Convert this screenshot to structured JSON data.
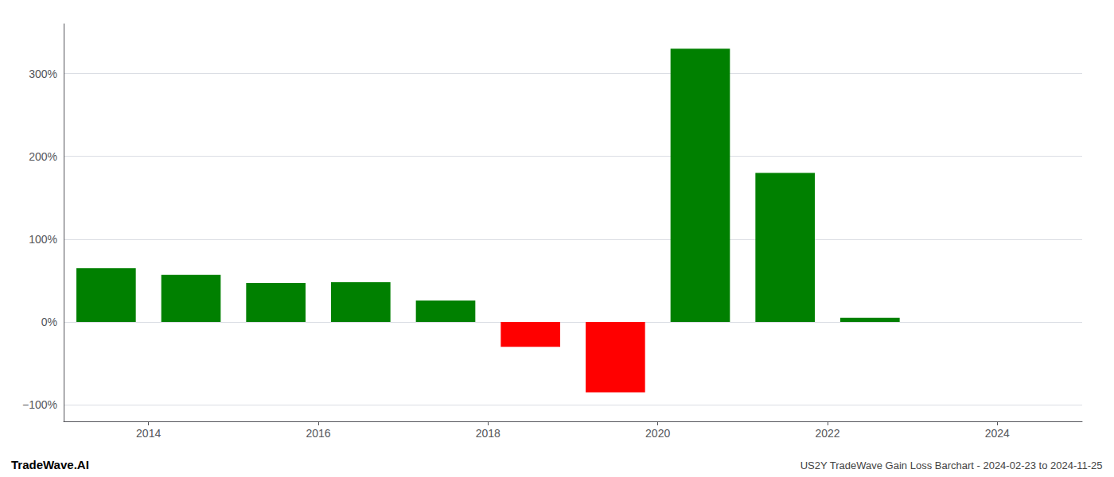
{
  "chart_data": {
    "type": "bar",
    "x": [
      2013,
      2014,
      2015,
      2016,
      2017,
      2018,
      2019,
      2020,
      2021,
      2022,
      2023
    ],
    "values": [
      65,
      57,
      47,
      48,
      26,
      -30,
      -85,
      330,
      180,
      5,
      0
    ],
    "colors": [
      "#008000",
      "#008000",
      "#008000",
      "#008000",
      "#008000",
      "#ff0000",
      "#ff0000",
      "#008000",
      "#008000",
      "#008000",
      "#008000"
    ],
    "xlim": [
      2013,
      2025
    ],
    "xticks": [
      2014,
      2016,
      2018,
      2020,
      2022,
      2024
    ],
    "ylim": [
      -120,
      360
    ],
    "yticks": [
      {
        "value": -100,
        "label": "−100%"
      },
      {
        "value": 0,
        "label": "0%"
      },
      {
        "value": 100,
        "label": "100%"
      },
      {
        "value": 200,
        "label": "200%"
      },
      {
        "value": 300,
        "label": "300%"
      }
    ],
    "grid": true,
    "annotations": [
      "TradeWave.AI",
      "US2Y TradeWave Gain Loss Barchart - 2024-02-23 to 2024-11-25"
    ]
  }
}
